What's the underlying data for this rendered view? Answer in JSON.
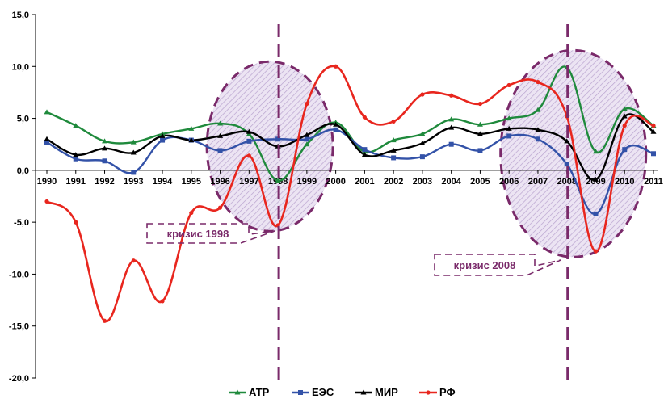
{
  "chart_data": {
    "type": "line",
    "title": "",
    "xlabel": "",
    "ylabel": "",
    "x": [
      "1990",
      "1991",
      "1992",
      "1993",
      "1994",
      "1995",
      "1996",
      "1997",
      "1998",
      "1999",
      "2000",
      "2001",
      "2002",
      "2003",
      "2004",
      "2005",
      "2006",
      "2007",
      "2008",
      "2009",
      "2010",
      "2011"
    ],
    "ylim": [
      -20,
      15
    ],
    "yticks": [
      15,
      10,
      5,
      0,
      -5,
      -10,
      -15,
      -20
    ],
    "ytick_labels": [
      "15,0",
      "10,0",
      "5,0",
      "0,0",
      "-5,0",
      "-10,0",
      "-15,0",
      "-20,0"
    ],
    "grid": false,
    "legend_position": "bottom",
    "series": [
      {
        "name": "АТР",
        "color": "#1f8a3c",
        "marker": "triangle",
        "values": [
          5.6,
          4.3,
          2.8,
          2.7,
          3.5,
          4.0,
          4.5,
          3.5,
          -1.0,
          2.5,
          4.6,
          1.8,
          2.9,
          3.5,
          4.9,
          4.4,
          5.0,
          5.8,
          9.9,
          1.8,
          5.9,
          4.3
        ]
      },
      {
        "name": "ЕЭС",
        "color": "#3352a8",
        "marker": "square",
        "values": [
          2.7,
          1.1,
          0.9,
          -0.2,
          2.9,
          2.9,
          1.9,
          2.8,
          3.0,
          3.0,
          3.9,
          2.0,
          1.2,
          1.3,
          2.5,
          1.9,
          3.3,
          3.0,
          0.6,
          -4.2,
          2.0,
          1.6
        ]
      },
      {
        "name": "МИР",
        "color": "#000000",
        "marker": "triangle",
        "values": [
          3.0,
          1.5,
          2.1,
          1.7,
          3.3,
          2.9,
          3.3,
          3.7,
          2.3,
          3.4,
          4.4,
          1.5,
          1.9,
          2.6,
          4.1,
          3.5,
          4.0,
          3.9,
          2.8,
          -0.9,
          5.2,
          3.7
        ]
      },
      {
        "name": "РФ",
        "color": "#e8261e",
        "marker": "circle",
        "values": [
          -3.0,
          -5.0,
          -14.5,
          -8.7,
          -12.6,
          -4.1,
          -3.6,
          1.4,
          -5.3,
          6.4,
          10.0,
          5.1,
          4.7,
          7.3,
          7.2,
          6.4,
          8.2,
          8.5,
          5.2,
          -7.8,
          4.3,
          4.3
        ]
      }
    ],
    "annotations": [
      {
        "label": "кризис 1998",
        "year": "1998",
        "type": "crisis-marker"
      },
      {
        "label": "кризис 2008",
        "year": "2008",
        "type": "crisis-marker"
      }
    ]
  },
  "colors": {
    "annotation": "#7a2a6a",
    "ellipse_fill": "#d9c9e6"
  }
}
